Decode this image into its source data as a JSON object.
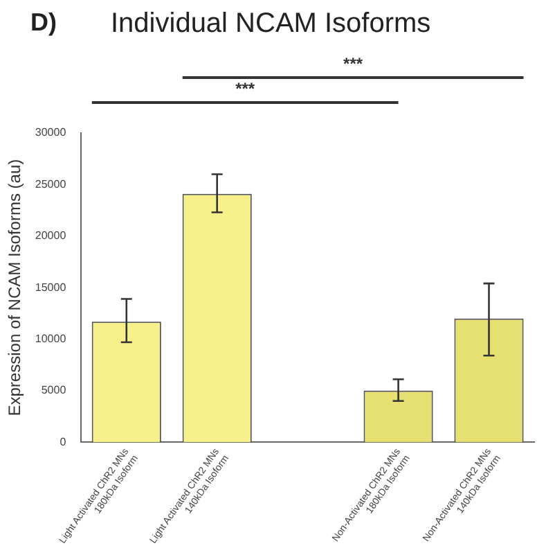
{
  "chart_data": {
    "type": "bar",
    "title": "Individual NCAM Isoforms",
    "ylabel": "Expression of NCAM Isoforms (au)",
    "categories": [
      "Light Activated ChR2 MNs\n180kDa Isoform",
      "Light Activated ChR2 MNs\n140kDa Isoform",
      null,
      "Non-Activated ChR2 MNs\n180kDa Isoform",
      "Non-Activated ChR2 MNs\n140kDa Isoform"
    ],
    "values": [
      11700,
      24100,
      null,
      5000,
      12000
    ],
    "errors": [
      [
        9700,
        13900
      ],
      [
        22300,
        26000
      ],
      null,
      [
        4000,
        6100
      ],
      [
        8400,
        15400
      ]
    ],
    "colors": [
      "#f6f08a",
      "#f6f08a",
      "#ffffff",
      "#e6df72",
      "#e6df72"
    ],
    "ylim": [
      0,
      30000
    ],
    "yticks": [
      0,
      5000,
      10000,
      15000,
      20000,
      25000,
      30000
    ],
    "grid": false,
    "legend": false,
    "annotations": [
      "D)",
      "***",
      "***"
    ]
  }
}
